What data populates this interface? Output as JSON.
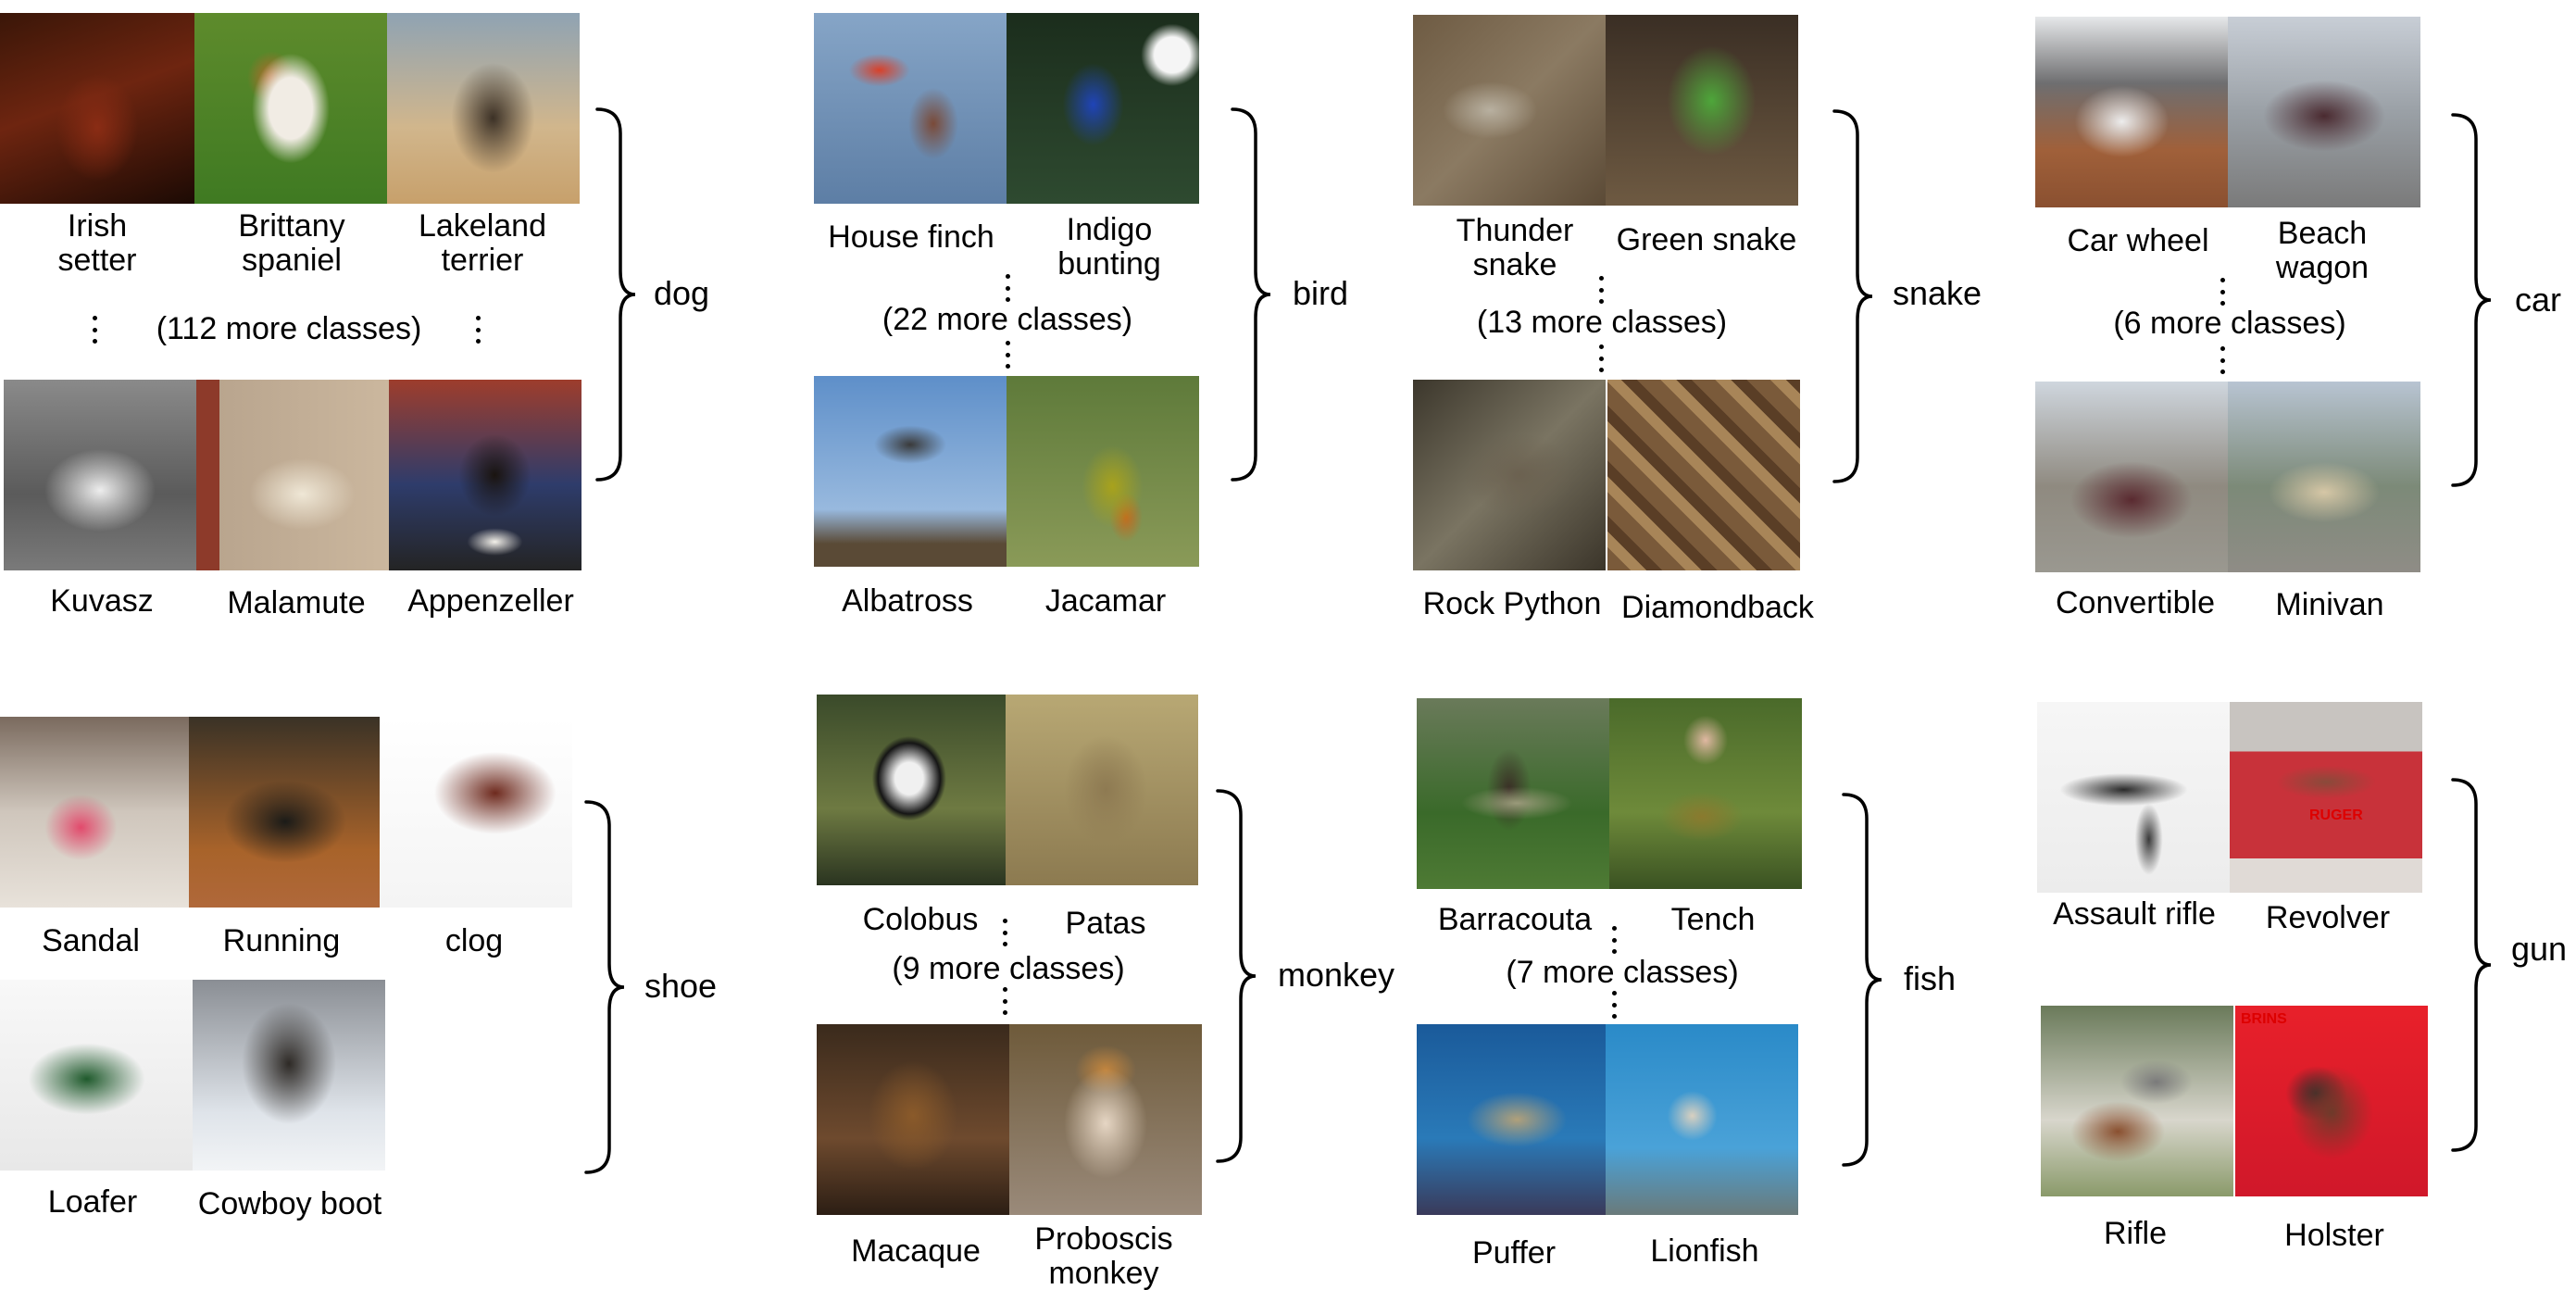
{
  "groups": [
    {
      "id": "dog",
      "category": "dog",
      "more": "(112 more classes)",
      "classes": [
        "Irish\nsetter",
        "Brittany\nspaniel",
        "Lakeland\nterrier",
        "Kuvasz",
        "Malamute",
        "Appenzeller"
      ]
    },
    {
      "id": "bird",
      "category": "bird",
      "more": "(22 more classes)",
      "classes": [
        "House finch",
        "Indigo\nbunting",
        "Albatross",
        "Jacamar"
      ]
    },
    {
      "id": "snake",
      "category": "snake",
      "more": "(13 more classes)",
      "classes": [
        "Thunder\nsnake",
        "Green snake",
        "Rock Python",
        "Diamondback"
      ]
    },
    {
      "id": "car",
      "category": "car",
      "more": "(6 more classes)",
      "classes": [
        "Car wheel",
        "Beach\nwagon",
        "Convertible",
        "Minivan"
      ]
    },
    {
      "id": "shoe",
      "category": "shoe",
      "more": "",
      "classes": [
        "Sandal",
        "Running\nshoe",
        "clog",
        "Loafer",
        "Cowboy boot"
      ]
    },
    {
      "id": "monkey",
      "category": "monkey",
      "more": "(9 more classes)",
      "classes": [
        "Colobus",
        "Patas",
        "Macaque",
        "Proboscis\nmonkey"
      ]
    },
    {
      "id": "fish",
      "category": "fish",
      "more": "(7 more classes)",
      "classes": [
        "Barracouta",
        "Tench",
        "Puffer",
        "Lionfish"
      ]
    },
    {
      "id": "gun",
      "category": "gun",
      "more": "",
      "classes": [
        "Assault rifle",
        "Revolver",
        "Rifle",
        "Holster"
      ]
    }
  ],
  "watermarks": {
    "revolver": "RUGER",
    "holster": "BRINS"
  },
  "colors": {
    "text": "#000000",
    "background": "#ffffff"
  }
}
